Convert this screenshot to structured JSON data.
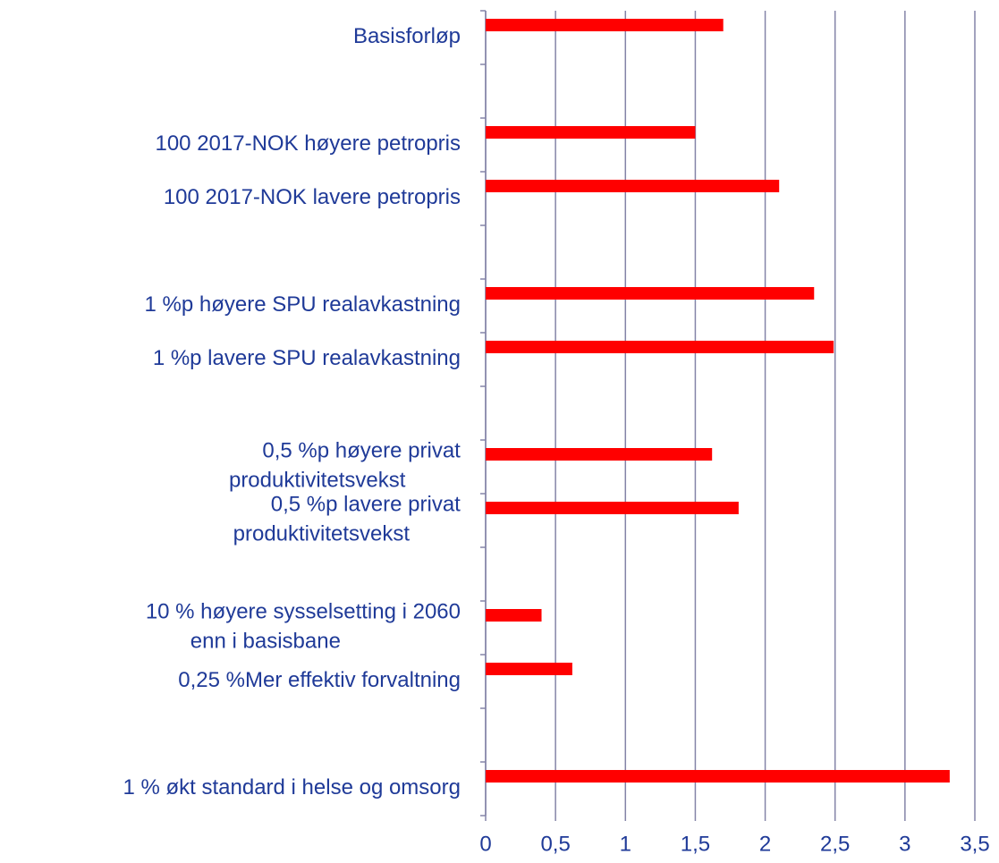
{
  "chart_data": {
    "type": "barh",
    "categories": [
      "Basisforløp",
      null,
      "100 2017-NOK høyere petropris",
      "100 2017-NOK lavere petropris",
      null,
      "1 %p høyere SPU realavkastning",
      "1 %p lavere SPU realavkastning",
      null,
      "0,5 %p høyere privat\nproduktivitetsvekst",
      "0,5 %p lavere privat\nproduktivitetsvekst",
      null,
      "10 % høyere sysselsetting i 2060\nenn i basisbane",
      "0,25 %Mer effektiv forvaltning",
      null,
      "1 % økt standard i helse og omsorg"
    ],
    "values": [
      1.7,
      null,
      1.5,
      2.1,
      null,
      2.35,
      2.49,
      null,
      1.62,
      1.81,
      null,
      0.4,
      0.62,
      null,
      3.32
    ],
    "color": "#ff0000",
    "xlim": [
      0,
      3.5
    ],
    "xticks": [
      0,
      {
        "value": 0.5,
        "label": "0,5"
      },
      1,
      {
        "value": 1.5,
        "label": "1,5"
      },
      2,
      {
        "value": 2.5,
        "label": "2,5"
      },
      3,
      {
        "value": 3.5,
        "label": "3,5"
      }
    ],
    "grid": true
  }
}
